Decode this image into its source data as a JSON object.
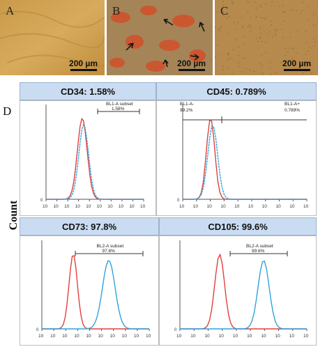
{
  "micrographs": [
    {
      "label": "A",
      "scale": "200 µm"
    },
    {
      "label": "B",
      "scale": "200 µm"
    },
    {
      "label": "C",
      "scale": "200 µm"
    }
  ],
  "panel_d_label": "D",
  "y_axis_label": "Count",
  "colors": {
    "control": "#e0403e",
    "marker": "#2ea3dc",
    "header": "#c9dcf1"
  },
  "chart_data": [
    {
      "type": "histogram",
      "title": "CD34: 1.58%",
      "gate_labels": [
        "BL1-A subset",
        "1.58%"
      ],
      "tick_labels": [
        "10",
        "10",
        "10",
        "10",
        "10",
        "10",
        "10",
        "10",
        "10",
        "10"
      ],
      "y_zero": "0"
    },
    {
      "type": "histogram",
      "title": "CD45: 0.789%",
      "gate_labels": [
        "BL1-A-",
        "99.2%",
        "BL1-A+",
        "0.789%"
      ],
      "tick_labels": [
        "10",
        "10",
        "10",
        "10",
        "10",
        "10",
        "10",
        "10",
        "10",
        "10"
      ],
      "y_zero": "0"
    },
    {
      "type": "histogram",
      "title": "CD73: 97.8%",
      "gate_labels": [
        "BL2-A subset",
        "97.8%"
      ],
      "tick_labels": [
        "10",
        "10",
        "10",
        "10",
        "10",
        "10",
        "10",
        "10",
        "10",
        "10"
      ],
      "y_zero": "0"
    },
    {
      "type": "histogram",
      "title": "CD105: 99.6%",
      "gate_labels": [
        "BL2-A subset",
        "99.6%"
      ],
      "tick_labels": [
        "10",
        "10",
        "10",
        "10",
        "10",
        "10",
        "10",
        "10",
        "10",
        "10"
      ],
      "y_zero": "0"
    }
  ]
}
